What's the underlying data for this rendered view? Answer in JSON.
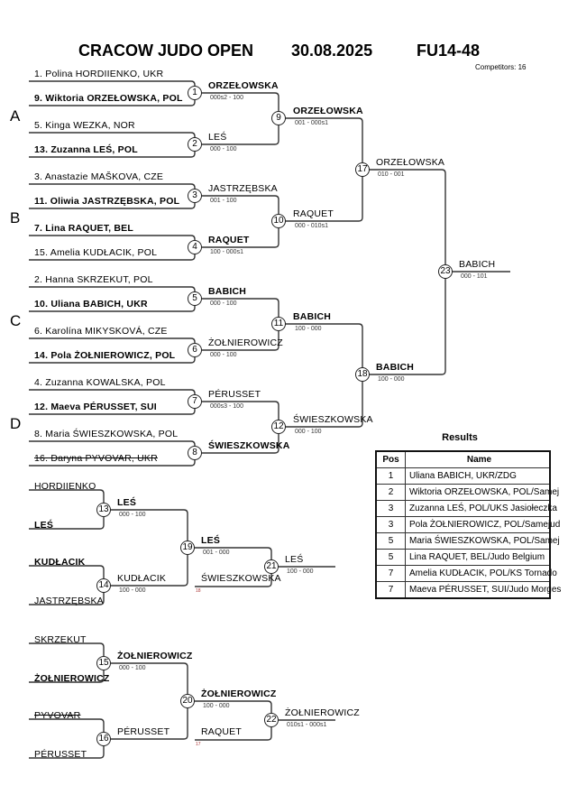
{
  "header": {
    "event": "CRACOW JUDO OPEN",
    "date": "30.08.2025",
    "category": "FU14-48",
    "competitors": "Competitors: 16"
  },
  "pools": [
    "A",
    "B",
    "C",
    "D"
  ],
  "round1": [
    {
      "match": "1",
      "top": {
        "text": "1. Polina HORDIIENKO, UKR",
        "bold": false
      },
      "bottom": {
        "text": "9. Wiktoria ORZEŁOWSKA, POL",
        "bold": true
      },
      "winner": "ORZEŁOWSKA",
      "winner_bold": true,
      "score": "000s2 - 100"
    },
    {
      "match": "2",
      "top": {
        "text": "5. Kinga WEZKA, NOR",
        "bold": false
      },
      "bottom": {
        "text": "13. Zuzanna LEŚ, POL",
        "bold": true
      },
      "winner": "LEŚ",
      "winner_bold": false,
      "score": "000 - 100"
    },
    {
      "match": "3",
      "top": {
        "text": "3. Anastazie MAŠKOVA, CZE",
        "bold": false
      },
      "bottom": {
        "text": "11. Oliwia JASTRZĘBSKA, POL",
        "bold": true
      },
      "winner": "JASTRZĘBSKA",
      "winner_bold": false,
      "score": "001 - 100"
    },
    {
      "match": "4",
      "top": {
        "text": "7. Lina RAQUET, BEL",
        "bold": true
      },
      "bottom": {
        "text": "15. Amelia KUDŁACIK, POL",
        "bold": false
      },
      "winner": "RAQUET",
      "winner_bold": true,
      "score": "100 - 000s1"
    },
    {
      "match": "5",
      "top": {
        "text": "2. Hanna SKRZEKUT, POL",
        "bold": false
      },
      "bottom": {
        "text": "10. Uliana BABICH, UKR",
        "bold": true
      },
      "winner": "BABICH",
      "winner_bold": true,
      "score": "000 - 100"
    },
    {
      "match": "6",
      "top": {
        "text": "6. Karolína MIKYSKOVÁ, CZE",
        "bold": false
      },
      "bottom": {
        "text": "14. Pola ŻOŁNIEROWICZ, POL",
        "bold": true
      },
      "winner": "ŻOŁNIEROWICZ",
      "winner_bold": false,
      "score": "000 - 100"
    },
    {
      "match": "7",
      "top": {
        "text": "4. Zuzanna KOWALSKA, POL",
        "bold": false
      },
      "bottom": {
        "text": "12. Maeva PÉRUSSET, SUI",
        "bold": true
      },
      "winner": "PÉRUSSET",
      "winner_bold": false,
      "score": "000s3 - 100"
    },
    {
      "match": "8",
      "top": {
        "text": "8. Maria ŚWIESZKOWSKA, POL",
        "bold": false
      },
      "bottom": {
        "text": "16. Daryna PYVOVAR, UKR",
        "bold": false,
        "strike": true
      },
      "winner": "ŚWIESZKOWSKA",
      "winner_bold": true,
      "score": ""
    }
  ],
  "round2": [
    {
      "match": "9",
      "winner": "ORZEŁOWSKA",
      "winner_bold": true,
      "score": "001 - 000s1"
    },
    {
      "match": "10",
      "winner": "RAQUET",
      "winner_bold": false,
      "score": "000 - 010s1"
    },
    {
      "match": "11",
      "winner": "BABICH",
      "winner_bold": true,
      "score": "100 - 000"
    },
    {
      "match": "12",
      "winner": "ŚWIESZKOWSKA",
      "winner_bold": false,
      "score": "000 - 100"
    }
  ],
  "semis": [
    {
      "match": "17",
      "winner": "ORZEŁOWSKA",
      "winner_bold": false,
      "score": "010 - 001"
    },
    {
      "match": "18",
      "winner": "BABICH",
      "winner_bold": true,
      "score": "100 - 000"
    }
  ],
  "final": {
    "match": "23",
    "winner": "BABICH",
    "winner_bold": false,
    "score": "000 - 101"
  },
  "repechage": [
    {
      "first": [
        {
          "match": "13",
          "top": {
            "text": "HORDIIENKO",
            "bold": false
          },
          "bottom": {
            "text": "LEŚ",
            "bold": true
          },
          "winner": "LEŚ",
          "winner_bold": true,
          "score": "000 - 100"
        },
        {
          "match": "14",
          "top": {
            "text": "KUDŁACIK",
            "bold": true
          },
          "bottom": {
            "text": "JASTRZĘBSKA",
            "bold": false
          },
          "winner": "KUDŁACIK",
          "winner_bold": false,
          "score": "100 - 000"
        }
      ],
      "second": {
        "match": "19",
        "winner": "LEŚ",
        "winner_bold": true,
        "score": "001 - 000"
      },
      "loser_in": {
        "text": "ŚWIESZKOWSKA",
        "from": "18"
      },
      "bronze": {
        "match": "21",
        "winner": "LEŚ",
        "winner_bold": false,
        "score": "100 - 000"
      }
    },
    {
      "first": [
        {
          "match": "15",
          "top": {
            "text": "SKRZEKUT",
            "bold": false
          },
          "bottom": {
            "text": "ŻOŁNIEROWICZ",
            "bold": true
          },
          "winner": "ŻOŁNIEROWICZ",
          "winner_bold": true,
          "score": "000 - 100"
        },
        {
          "match": "16",
          "top": {
            "text": "PYVOVAR",
            "bold": false,
            "strike": true
          },
          "bottom": {
            "text": "PÉRUSSET",
            "bold": false
          },
          "winner": "PÉRUSSET",
          "winner_bold": false,
          "score": ""
        }
      ],
      "second": {
        "match": "20",
        "winner": "ŻOŁNIEROWICZ",
        "winner_bold": true,
        "score": "100 - 000"
      },
      "loser_in": {
        "text": "RAQUET",
        "from": "17"
      },
      "bronze": {
        "match": "22",
        "winner": "ŻOŁNIEROWICZ",
        "winner_bold": false,
        "score": "010s1 - 000s1"
      }
    }
  ],
  "results": {
    "title": "Results",
    "columns": [
      "Pos",
      "Name"
    ],
    "rows": [
      {
        "pos": "1",
        "name": "Uliana BABICH, UKR/ZDG"
      },
      {
        "pos": "2",
        "name": "Wiktoria ORZEŁOWSKA, POL/Samej"
      },
      {
        "pos": "3",
        "name": "Zuzanna LEŚ, POL/UKS Jasiołeczka"
      },
      {
        "pos": "3",
        "name": "Pola ŻOŁNIEROWICZ, POL/Samejud"
      },
      {
        "pos": "5",
        "name": "Maria ŚWIESZKOWSKA, POL/Samej"
      },
      {
        "pos": "5",
        "name": "Lina RAQUET, BEL/Judo Belgium"
      },
      {
        "pos": "7",
        "name": "Amelia KUDŁACIK, POL/KS Tornado"
      },
      {
        "pos": "7",
        "name": "Maeva PÉRUSSET, SUI/Judo Morges"
      }
    ]
  },
  "colors": {
    "line": "#333333",
    "text": "#000000",
    "score": "#333333"
  }
}
